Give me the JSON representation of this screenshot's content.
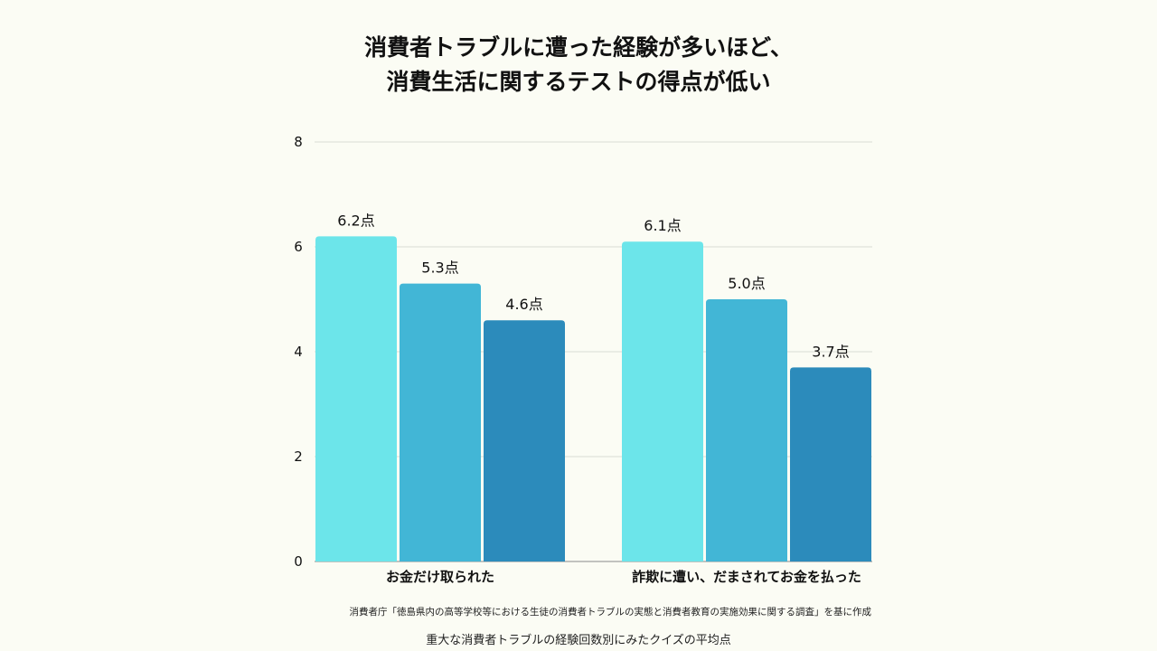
{
  "title": {
    "line1": "消費者トラブルに遭った経験が多いほど、",
    "line2": "消費生活に関するテストの得点が低い"
  },
  "source": "消費者庁「徳島県内の高等学校等における生徒の消費者トラブルの実態と消費者教育の実施効果に関する調査」を基に作成",
  "caption": "重大な消費者トラブルの経験回数別にみたクイズの平均点",
  "chart_data": {
    "type": "bar",
    "categories": [
      "お金だけ取られた",
      "詐欺に遭い、だまされてお金を払った"
    ],
    "series": [
      {
        "values": [
          6.2,
          6.1
        ],
        "color": "#6ce5ea"
      },
      {
        "values": [
          5.3,
          5.0
        ],
        "color": "#42b6d6"
      },
      {
        "values": [
          4.6,
          3.7
        ],
        "color": "#2c8bbb"
      }
    ],
    "value_labels": [
      [
        "6.2点",
        "6.1点"
      ],
      [
        "5.3点",
        "5.0点"
      ],
      [
        "4.6点",
        "3.7点"
      ]
    ],
    "ylim": [
      0,
      8
    ],
    "yticks": [
      "0",
      "2",
      "4",
      "6",
      "8"
    ],
    "grid": true,
    "gridColor": "#d9dbd5"
  }
}
